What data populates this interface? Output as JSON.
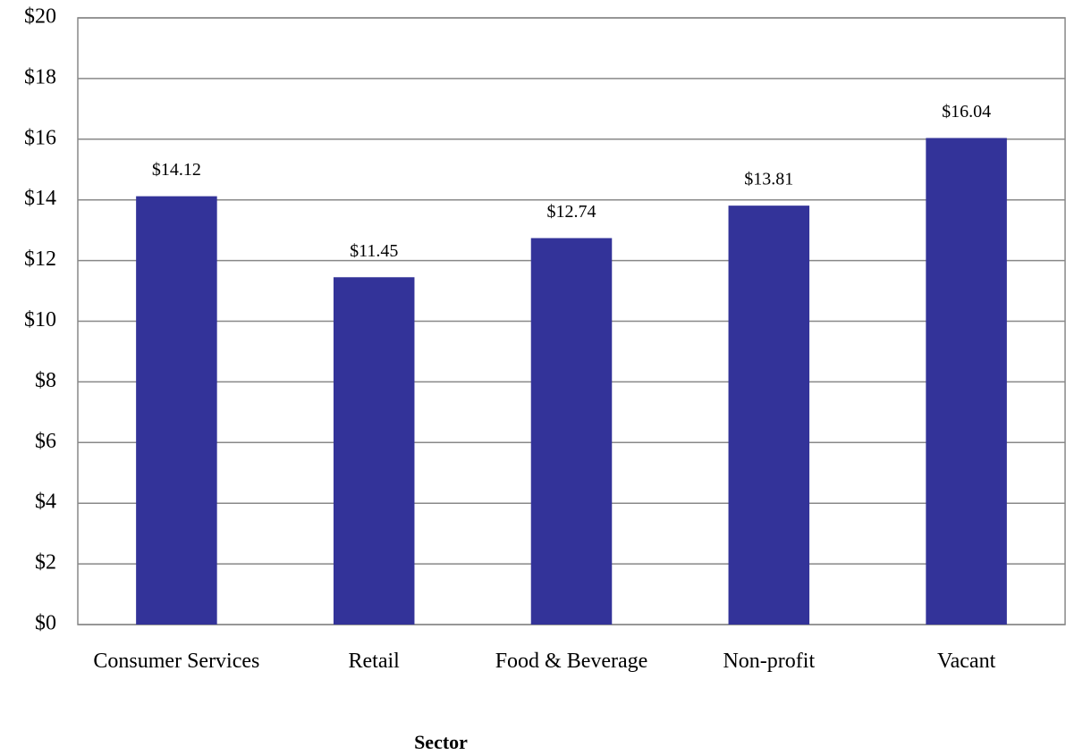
{
  "chart_data": {
    "type": "bar",
    "x_label": "Sector",
    "categories": [
      "Consumer Services",
      "Retail",
      "Food & Beverage",
      "Non-profit",
      "Vacant"
    ],
    "values": [
      14.12,
      11.45,
      12.74,
      13.81,
      16.04
    ],
    "value_labels": [
      "$14.12",
      "$11.45",
      "$12.74",
      "$13.81",
      "$16.04"
    ],
    "color": "#333399",
    "ylim": [
      0,
      20
    ],
    "yticks": [
      {
        "value": 0,
        "label": "$0"
      },
      {
        "value": 2,
        "label": "$2"
      },
      {
        "value": 4,
        "label": "$4"
      },
      {
        "value": 6,
        "label": "$6"
      },
      {
        "value": 8,
        "label": "$8"
      },
      {
        "value": 10,
        "label": "$10"
      },
      {
        "value": 12,
        "label": "$12"
      },
      {
        "value": 14,
        "label": "$14"
      },
      {
        "value": 16,
        "label": "$16"
      },
      {
        "value": 18,
        "label": "$18"
      },
      {
        "value": 20,
        "label": "$20"
      }
    ],
    "grid": true
  }
}
